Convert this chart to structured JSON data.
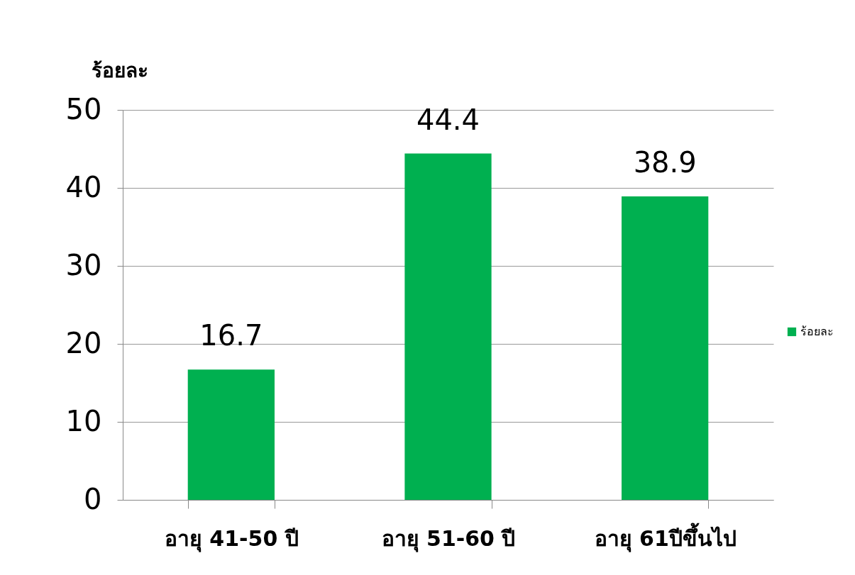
{
  "chart_data": {
    "type": "bar",
    "ylabel": "ร้อยละ",
    "categories": [
      "อายุ 41-50 ปี",
      "อายุ 51-60 ปี",
      "อายุ 61ปีขึ้นไป"
    ],
    "series": [
      {
        "name": "ร้อยละ",
        "color": "#00b050",
        "values": [
          16.7,
          44.4,
          38.9
        ]
      }
    ],
    "ylim": [
      0,
      50
    ],
    "yticks": [
      0,
      10,
      20,
      30,
      40,
      50
    ],
    "grid": "y",
    "legend": "right",
    "data_labels": true
  }
}
